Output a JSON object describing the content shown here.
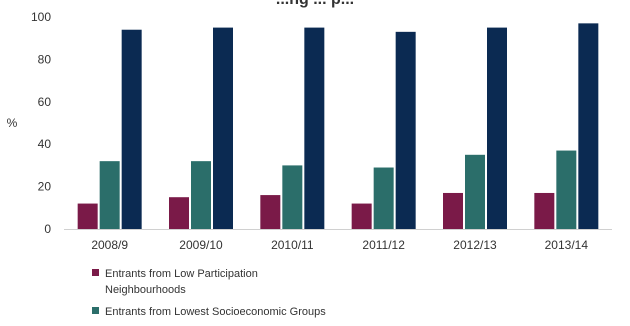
{
  "chart_data": {
    "type": "bar",
    "title": "...ng ... p...",
    "ylabel": "%",
    "xlabel": "",
    "ylim": [
      0,
      100
    ],
    "yticks": [
      0,
      20,
      40,
      60,
      80,
      100
    ],
    "categories": [
      "2008/9",
      "2009/10",
      "2010/11",
      "2011/12",
      "2012/13",
      "2013/14"
    ],
    "series": [
      {
        "name": "Entrants from Low Participation Neighbourhoods",
        "color": "#7a1a48",
        "values": [
          12,
          15,
          16,
          12,
          17,
          17
        ]
      },
      {
        "name": "Entrants from Lowest Socioeconomic Groups",
        "color": "#2b6e6a",
        "values": [
          32,
          32,
          30,
          29,
          35,
          37
        ]
      },
      {
        "name": "",
        "color": "#0b2a52",
        "values": [
          94,
          95,
          95,
          93,
          95,
          97
        ]
      }
    ],
    "legend": [
      {
        "line1": "Entrants from Low Participation",
        "line2": "Neighbourhoods"
      },
      {
        "line1": "Entrants from Lowest Socioeconomic Groups",
        "line2": ""
      }
    ],
    "grid": false,
    "legend_position": "bottom-left"
  }
}
